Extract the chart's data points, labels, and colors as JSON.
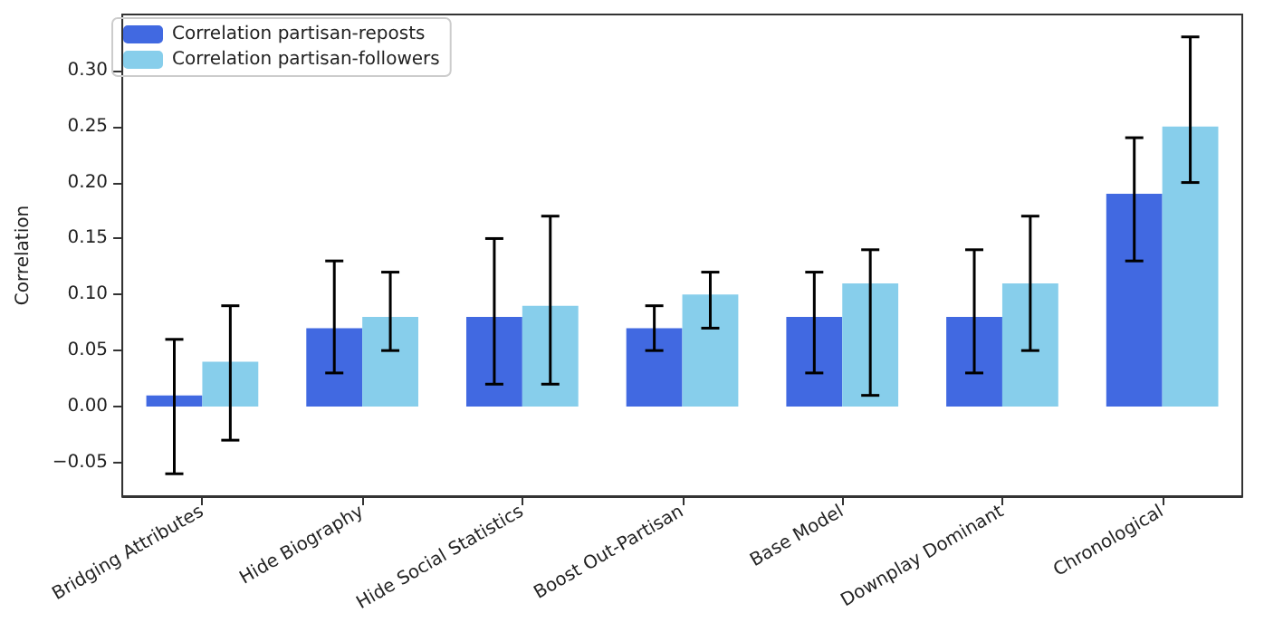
{
  "chart_data": {
    "type": "bar",
    "ylabel": "Correlation",
    "categories": [
      "Bridging Attributes",
      "Hide Biography",
      "Hide Social Statistics",
      "Boost Out-Partisan",
      "Base Model",
      "Downplay Dominant",
      "Chronological"
    ],
    "series": [
      {
        "name": "Correlation partisan-reposts",
        "color": "#4169e1",
        "values": [
          0.01,
          0.07,
          0.08,
          0.07,
          0.08,
          0.08,
          0.19
        ],
        "errors": [
          [
            -0.06,
            0.06
          ],
          [
            0.03,
            0.13
          ],
          [
            0.02,
            0.15
          ],
          [
            0.05,
            0.09
          ],
          [
            0.03,
            0.12
          ],
          [
            0.03,
            0.14
          ],
          [
            0.13,
            0.24
          ]
        ]
      },
      {
        "name": "Correlation partisan-followers",
        "color": "#87ceeb",
        "values": [
          0.04,
          0.08,
          0.09,
          0.1,
          0.11,
          0.11,
          0.25
        ],
        "errors": [
          [
            -0.03,
            0.09
          ],
          [
            0.05,
            0.12
          ],
          [
            0.02,
            0.17
          ],
          [
            0.07,
            0.12
          ],
          [
            0.01,
            0.14
          ],
          [
            0.05,
            0.17
          ],
          [
            0.2,
            0.33
          ]
        ]
      }
    ],
    "ylim": [
      -0.08,
      0.35
    ],
    "yticks": [
      {
        "value": -0.05,
        "label": "−0.05"
      },
      {
        "value": 0,
        "label": "0.00"
      },
      {
        "value": 0.05,
        "label": "0.05"
      },
      {
        "value": 0.1,
        "label": "0.10"
      },
      {
        "value": 0.15,
        "label": "0.15"
      },
      {
        "value": 0.2,
        "label": "0.20"
      },
      {
        "value": 0.25,
        "label": "0.25"
      },
      {
        "value": 0.3,
        "label": "0.30"
      }
    ],
    "grid": false,
    "legend": "top left"
  }
}
